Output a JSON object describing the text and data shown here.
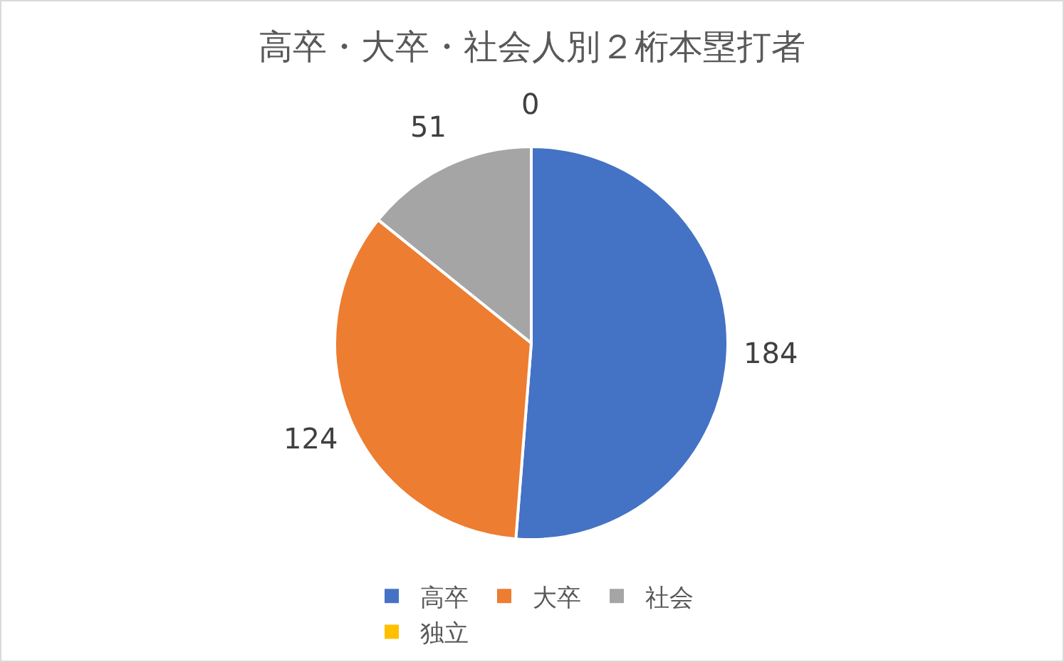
{
  "chart_data": {
    "type": "pie",
    "title": "高卒・大卒・社会人別２桁本塁打者",
    "categories": [
      "高卒",
      "大卒",
      "社会",
      "独立"
    ],
    "values": [
      184,
      124,
      51,
      0
    ],
    "colors": [
      "#4472c4",
      "#ed7d31",
      "#a5a5a5",
      "#ffc000"
    ],
    "value_labels": [
      "184",
      "124",
      "51",
      "0"
    ],
    "legend": "bottom"
  }
}
